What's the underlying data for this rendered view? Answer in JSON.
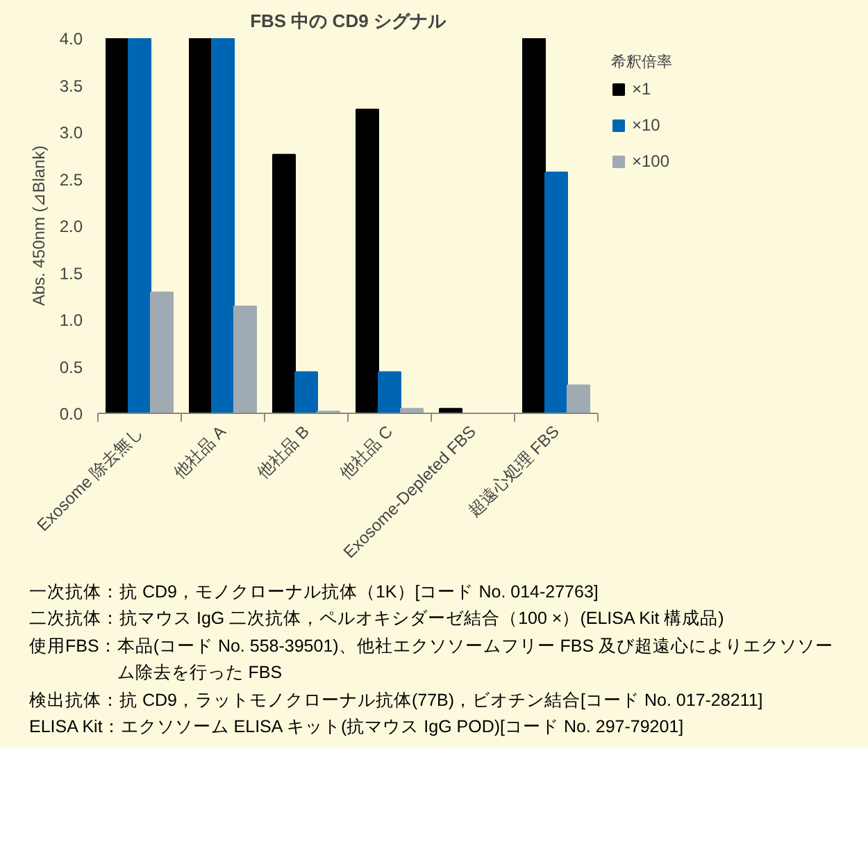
{
  "chart_data": {
    "type": "bar",
    "title": "FBS 中の CD9 シグナル",
    "ylabel": "Abs. 450nm (⊿Blank)",
    "legend_title": "希釈倍率",
    "legend": "top right",
    "categories": [
      "Exosome 除去無し",
      "他社品 A",
      "他社品 B",
      "他社品 C",
      "Exosome-Depleted FBS",
      "超遠心処理 FBS"
    ],
    "series": [
      {
        "name": "×1",
        "color": "#000000",
        "values": [
          4.0,
          4.0,
          2.76,
          3.24,
          0.05,
          4.0
        ]
      },
      {
        "name": "×10",
        "color": "#0066b3",
        "values": [
          4.0,
          4.0,
          0.44,
          0.44,
          0.0,
          2.57
        ]
      },
      {
        "name": "×100",
        "color": "#a0aab2",
        "values": [
          1.29,
          1.14,
          0.02,
          0.05,
          0.0,
          0.3
        ]
      }
    ],
    "ylim": [
      0,
      4
    ],
    "yticks": [
      {
        "value": 0,
        "label": "0.0"
      },
      {
        "value": 0.5,
        "label": "0.5"
      },
      {
        "value": 1,
        "label": "1.0"
      },
      {
        "value": 1.5,
        "label": "1.5"
      },
      {
        "value": 2,
        "label": "2.0"
      },
      {
        "value": 2.5,
        "label": "2.5"
      },
      {
        "value": 3,
        "label": "3.0"
      },
      {
        "value": 3.5,
        "label": "3.5"
      },
      {
        "value": 4,
        "label": "4.0"
      }
    ],
    "grid": false,
    "annotations": [
      "一次抗体：抗 CD9，モノクローナル抗体（1K）[コード No. 014-27763]",
      "二次抗体：抗マウス IgG 二次抗体，ペルオキシダーゼ結合（100 ×）(ELISA Kit 構成品)",
      "使用FBS：本品(コード No. 558-39501)、他社エクソソームフリー FBS 及び超遠心によりエクソソーム除去を行った FBS",
      "検出抗体：抗 CD9，ラットモノクローナル抗体(77B)，ビオチン結合[コード No. 017-28211]",
      "ELISA Kit：エクソソーム ELISA キット(抗マウス IgG POD)[コード No. 297-79201]"
    ]
  }
}
